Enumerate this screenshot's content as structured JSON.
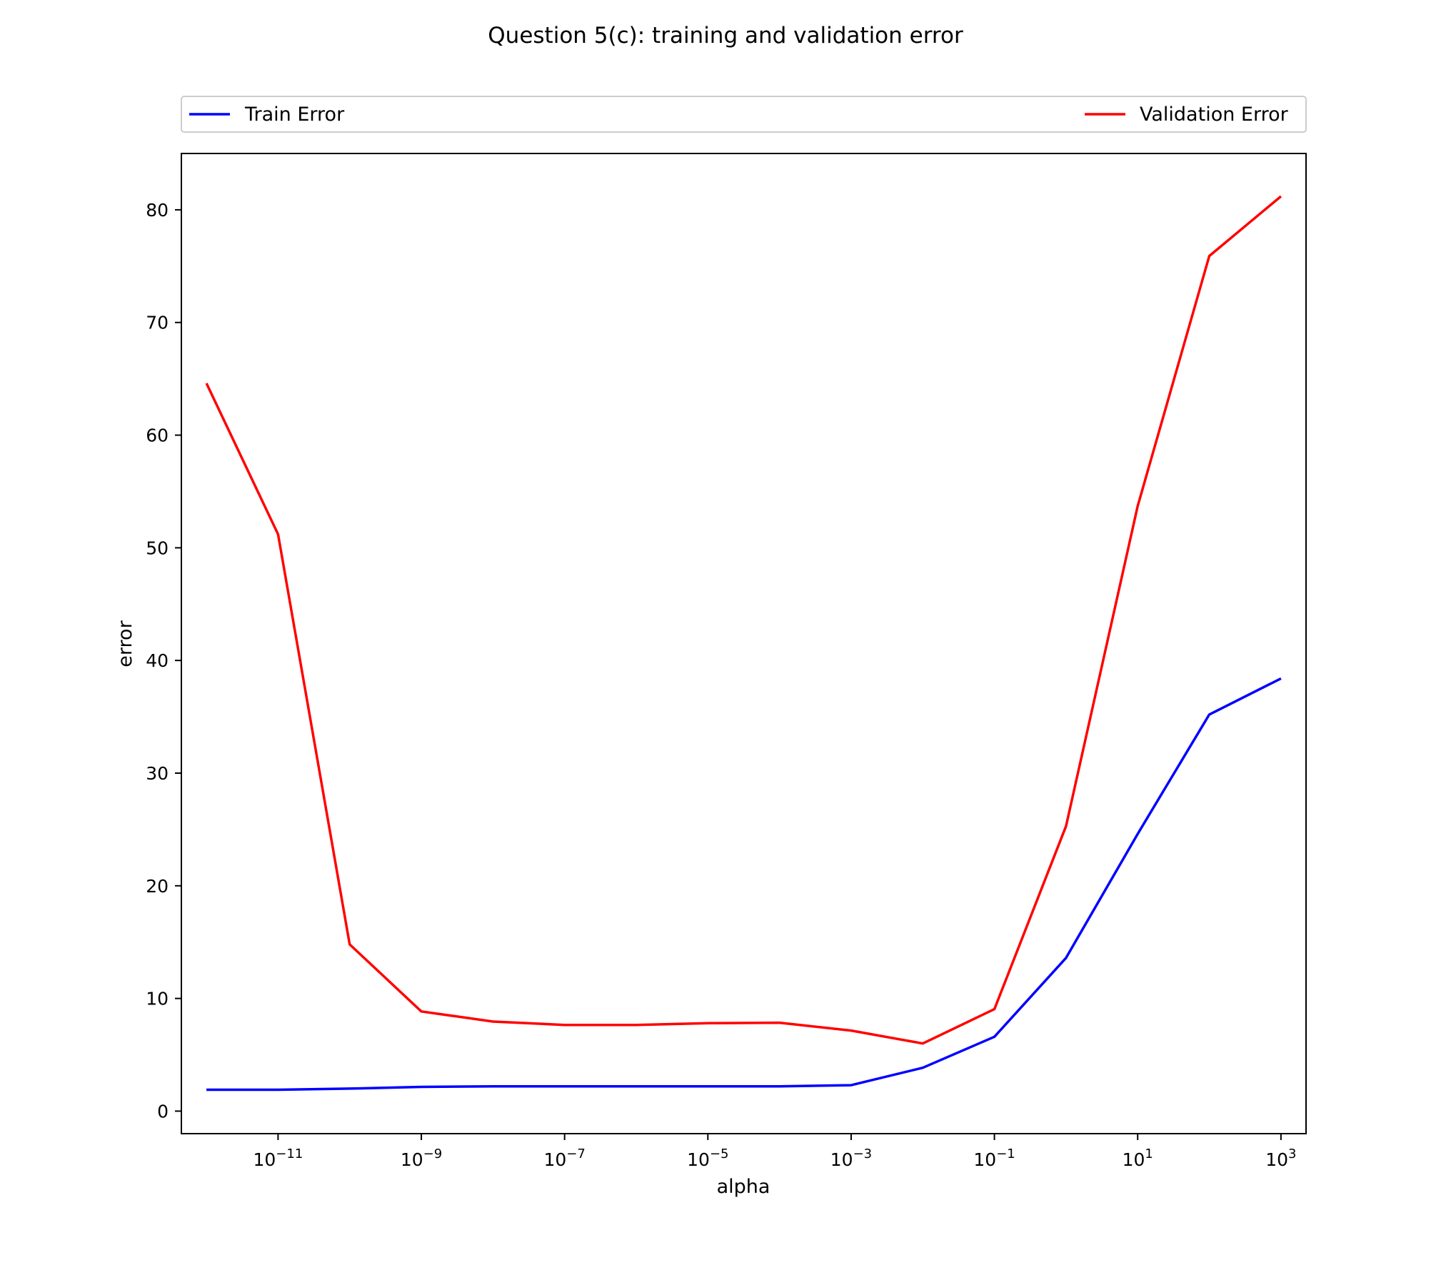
{
  "chart_data": {
    "type": "line",
    "title": "Question 5(c): training and validation error",
    "xlabel": "alpha",
    "ylabel": "error",
    "xscale": "log",
    "x": [
      1e-12,
      1e-11,
      1e-10,
      1e-09,
      1e-08,
      1e-07,
      1e-06,
      1e-05,
      0.0001,
      0.001,
      0.01,
      0.1,
      1,
      10,
      100,
      1000
    ],
    "series": [
      {
        "name": "Train Error",
        "color": "#0000ff",
        "values": [
          1.9,
          1.9,
          2.0,
          2.15,
          2.2,
          2.2,
          2.2,
          2.2,
          2.2,
          2.3,
          3.85,
          6.6,
          13.6,
          24.6,
          35.2,
          38.4
        ]
      },
      {
        "name": "Validation Error",
        "color": "#ff0000",
        "values": [
          64.6,
          51.2,
          14.8,
          8.85,
          7.95,
          7.65,
          7.65,
          7.8,
          7.85,
          7.15,
          6.0,
          9.05,
          25.3,
          53.7,
          75.9,
          81.2
        ]
      }
    ],
    "xlim": [
      4.47e-13,
      2240
    ],
    "ylim": [
      -2,
      85
    ],
    "xticks": [
      {
        "value": 1e-11,
        "base": "10",
        "exp": "−11"
      },
      {
        "value": 1e-09,
        "base": "10",
        "exp": "−9"
      },
      {
        "value": 1e-07,
        "base": "10",
        "exp": "−7"
      },
      {
        "value": 1e-05,
        "base": "10",
        "exp": "−5"
      },
      {
        "value": 0.001,
        "base": "10",
        "exp": "−3"
      },
      {
        "value": 0.1,
        "base": "10",
        "exp": "−1"
      },
      {
        "value": 10,
        "base": "10",
        "exp": "1"
      },
      {
        "value": 1000,
        "base": "10",
        "exp": "3"
      }
    ],
    "yticks": [
      {
        "value": 0,
        "label": "0"
      },
      {
        "value": 10,
        "label": "10"
      },
      {
        "value": 20,
        "label": "20"
      },
      {
        "value": 30,
        "label": "30"
      },
      {
        "value": 40,
        "label": "40"
      },
      {
        "value": 50,
        "label": "50"
      },
      {
        "value": 60,
        "label": "60"
      },
      {
        "value": 70,
        "label": "70"
      },
      {
        "value": 80,
        "label": "80"
      }
    ],
    "grid": false,
    "legend_placement": "above plot, expanded across width"
  }
}
